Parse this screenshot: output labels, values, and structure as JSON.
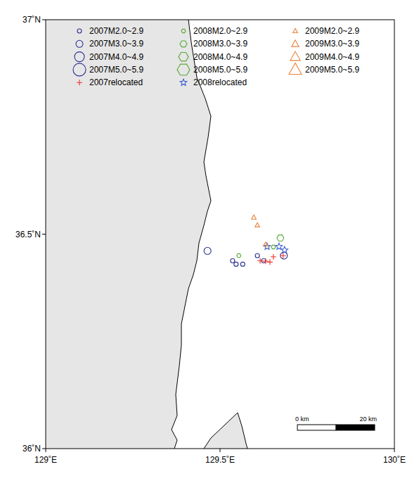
{
  "chart_data": {
    "type": "scatter",
    "xlim": [
      129,
      130
    ],
    "ylim": [
      36,
      37
    ],
    "xticks": [
      {
        "value": 129,
        "label": "129˚E"
      },
      {
        "value": 129.5,
        "label": "129.5˚E"
      },
      {
        "value": 130,
        "label": "130˚E"
      }
    ],
    "yticks": [
      {
        "value": 36,
        "label": "36˚N"
      },
      {
        "value": 36.5,
        "label": "36.5˚N"
      },
      {
        "value": 37,
        "label": "37˚N"
      }
    ],
    "grid": false,
    "legend": "top",
    "scale_bar": {
      "labels": [
        "0 km",
        "20 km"
      ]
    },
    "series": [
      {
        "name": "2007M2.0~2.9",
        "color": "#2b2f8f",
        "marker": "circle",
        "x": [
          129.536,
          129.546,
          129.565,
          129.607,
          129.625
        ],
        "values": [
          36.438,
          36.43,
          36.43,
          36.45,
          36.438
        ]
      },
      {
        "name": "2007M3.0~3.9",
        "color": "#2b2f8f",
        "marker": "circle",
        "x": [
          129.464,
          129.683
        ],
        "values": [
          36.461,
          36.45
        ]
      },
      {
        "name": "2007M4.0~4.9",
        "color": "#2b2f8f",
        "marker": "circle",
        "x": [],
        "values": []
      },
      {
        "name": "2007M5.0~5.9",
        "color": "#2b2f8f",
        "marker": "circle",
        "x": [],
        "values": []
      },
      {
        "name": "2007relocated",
        "color": "#e8332a",
        "marker": "cross",
        "x": [
          129.615,
          129.631,
          129.643,
          129.653,
          129.681
        ],
        "values": [
          36.438,
          36.437,
          36.435,
          36.447,
          36.45
        ]
      },
      {
        "name": "2008M2.0~2.9",
        "color": "#5aa83c",
        "marker": "hexagon",
        "x": [
          129.554,
          129.653
        ],
        "values": [
          36.45,
          36.47
        ]
      },
      {
        "name": "2008M3.0~3.9",
        "color": "#5aa83c",
        "marker": "hexagon",
        "x": [
          129.673
        ],
        "values": [
          36.491
        ]
      },
      {
        "name": "2008M4.0~4.9",
        "color": "#5aa83c",
        "marker": "hexagon",
        "x": [],
        "values": []
      },
      {
        "name": "2008M5.0~5.9",
        "color": "#5aa83c",
        "marker": "hexagon",
        "x": [],
        "values": []
      },
      {
        "name": "2008relocated",
        "color": "#3a5fd0",
        "marker": "star",
        "x": [
          129.635,
          129.669,
          129.685
        ],
        "values": [
          36.471,
          36.471,
          36.463
        ]
      },
      {
        "name": "2009M2.0~2.9",
        "color": "#e8823a",
        "marker": "triangle",
        "x": [
          129.597,
          129.607,
          129.631
        ],
        "values": [
          36.539,
          36.521,
          36.476
        ]
      },
      {
        "name": "2009M3.0~3.9",
        "color": "#e8823a",
        "marker": "triangle",
        "x": [],
        "values": []
      },
      {
        "name": "2009M4.0~4.9",
        "color": "#e8823a",
        "marker": "triangle",
        "x": [],
        "values": []
      },
      {
        "name": "2009M5.0~5.9",
        "color": "#e8823a",
        "marker": "triangle",
        "x": [],
        "values": []
      }
    ]
  }
}
